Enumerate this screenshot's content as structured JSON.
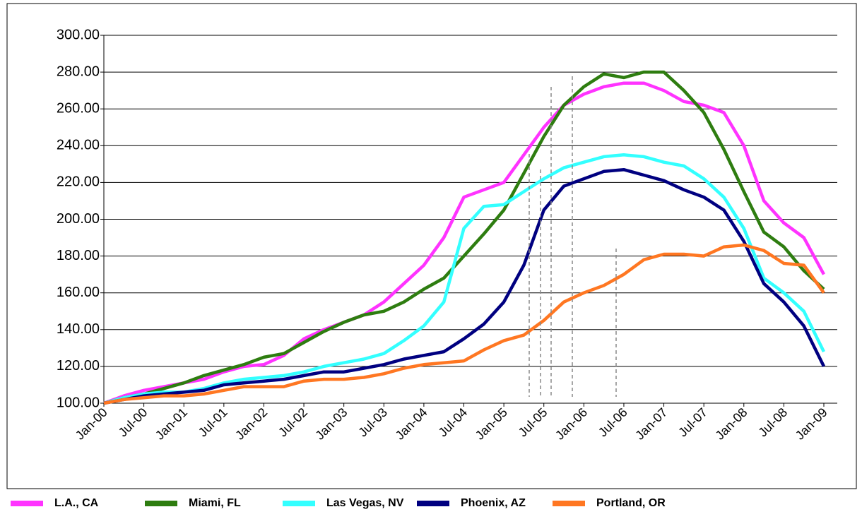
{
  "chart_data": {
    "type": "line",
    "categories": [
      "Jan-00",
      null,
      "Jul-00",
      null,
      "Jan-01",
      null,
      "Jul-01",
      null,
      "Jan-02",
      null,
      "Jul-02",
      null,
      "Jan-03",
      null,
      "Jul-03",
      null,
      "Jan-04",
      null,
      "Jul-04",
      null,
      "Jan-05",
      null,
      "Jul-05",
      null,
      "Jan-06",
      null,
      "Jul-06",
      null,
      "Jan-07",
      null,
      "Jul-07",
      null,
      "Jan-08",
      null,
      "Jul-08",
      null,
      "Jan-09"
    ],
    "series": [
      {
        "name": "L.A., CA",
        "color": "#ff33ff",
        "values": [
          100,
          104,
          107,
          109,
          111,
          113,
          117,
          120,
          121,
          126,
          135,
          140,
          144,
          148,
          155,
          165,
          175,
          190,
          212,
          216,
          220,
          235,
          250,
          262,
          268,
          272,
          274,
          274,
          270,
          264,
          262,
          258,
          240,
          210,
          198,
          190,
          170
        ]
      },
      {
        "name": "Miami, FL",
        "color": "#2e7d10",
        "values": [
          100,
          103,
          105,
          108,
          111,
          115,
          118,
          121,
          125,
          127,
          133,
          139,
          144,
          148,
          150,
          155,
          162,
          168,
          180,
          192,
          205,
          225,
          245,
          262,
          272,
          279,
          277,
          280,
          280,
          270,
          258,
          238,
          215,
          193,
          185,
          172,
          162
        ]
      },
      {
        "name": "Las Vegas, NV",
        "color": "#33ffff",
        "values": [
          100,
          103,
          105,
          106,
          106,
          108,
          111,
          113,
          114,
          115,
          117,
          120,
          122,
          124,
          127,
          134,
          142,
          155,
          195,
          207,
          208,
          215,
          222,
          228,
          231,
          234,
          235,
          234,
          231,
          229,
          222,
          212,
          195,
          168,
          160,
          150,
          128
        ]
      },
      {
        "name": "Phoenix, AZ",
        "color": "#000080",
        "values": [
          100,
          102,
          104,
          105,
          106,
          107,
          110,
          111,
          112,
          113,
          115,
          117,
          117,
          119,
          121,
          124,
          126,
          128,
          135,
          143,
          155,
          175,
          205,
          218,
          222,
          226,
          227,
          224,
          221,
          216,
          212,
          205,
          188,
          165,
          155,
          142,
          120
        ]
      },
      {
        "name": "Portland, OR",
        "color": "#ff7722",
        "values": [
          100,
          102,
          103,
          104,
          104,
          105,
          107,
          109,
          109,
          109,
          112,
          113,
          113,
          114,
          116,
          119,
          121,
          122,
          123,
          129,
          134,
          137,
          145,
          155,
          160,
          164,
          170,
          178,
          181,
          181,
          180,
          185,
          186,
          183,
          176,
          175,
          160
        ]
      }
    ],
    "ylim": [
      100,
      300
    ],
    "yticks": [
      {
        "value": 100,
        "label": "100.00"
      },
      {
        "value": 120,
        "label": "120.00"
      },
      {
        "value": 140,
        "label": "140.00"
      },
      {
        "value": 160,
        "label": "160.00"
      },
      {
        "value": 180,
        "label": "180.00"
      },
      {
        "value": 200,
        "label": "200.00"
      },
      {
        "value": 220,
        "label": "220.00"
      },
      {
        "value": 240,
        "label": "240.00"
      },
      {
        "value": 260,
        "label": "260.00"
      },
      {
        "value": 280,
        "label": "280.00"
      },
      {
        "value": 300,
        "label": "300.00"
      }
    ],
    "grid": true,
    "legend": "bottom"
  }
}
